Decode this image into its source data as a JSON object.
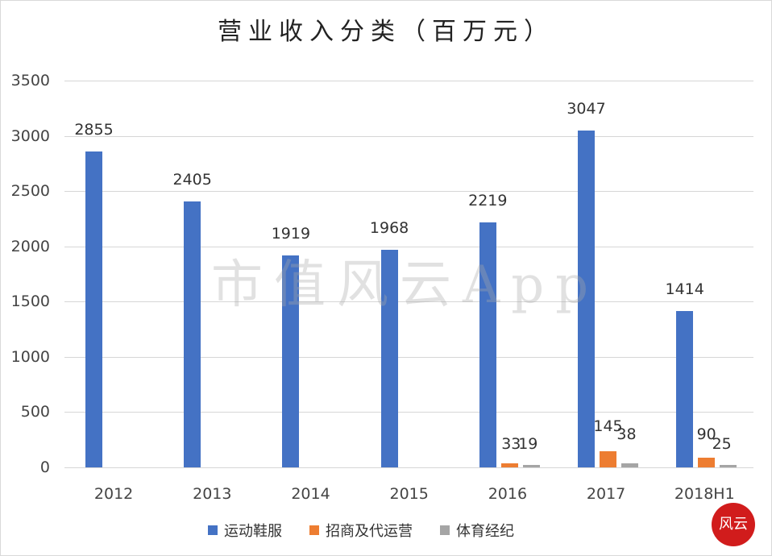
{
  "chart_data": {
    "type": "bar",
    "title": "营业收入分类（百万元）",
    "xlabel": "",
    "ylabel": "",
    "ylim": [
      0,
      3500
    ],
    "yticks": [
      0,
      500,
      1000,
      1500,
      2000,
      2500,
      3000,
      3500
    ],
    "grid": true,
    "legend_position": "bottom",
    "categories": [
      "2012",
      "2013",
      "2014",
      "2015",
      "2016",
      "2017",
      "2018H1"
    ],
    "series": [
      {
        "name": "运动鞋服",
        "color": "#4472C4",
        "values": [
          2855,
          2405,
          1919,
          1968,
          2219,
          3047,
          1414
        ]
      },
      {
        "name": "招商及代运营",
        "color": "#ED7D31",
        "values": [
          null,
          null,
          null,
          null,
          33,
          145,
          90
        ]
      },
      {
        "name": "体育经纪",
        "color": "#A5A5A5",
        "values": [
          null,
          null,
          null,
          null,
          19,
          38,
          25
        ]
      }
    ],
    "annotations": [
      "市值风云App (watermark)"
    ]
  },
  "title": "营业收入分类（百万元）",
  "yticks": [
    "3500",
    "3000",
    "2500",
    "2000",
    "1500",
    "1000",
    "500",
    "0"
  ],
  "categories": [
    "2012",
    "2013",
    "2014",
    "2015",
    "2016",
    "2017",
    "2018H1"
  ],
  "legend": {
    "s0": "运动鞋服",
    "s1": "招商及代运营",
    "s2": "体育经纪"
  },
  "labels": {
    "s0": [
      "2855",
      "2405",
      "1919",
      "1968",
      "2219",
      "3047",
      "1414"
    ],
    "s1": [
      "33",
      "145",
      "90"
    ],
    "s2": [
      "19",
      "38",
      "25"
    ]
  },
  "watermark": "市值风云App",
  "stamp": "风云"
}
